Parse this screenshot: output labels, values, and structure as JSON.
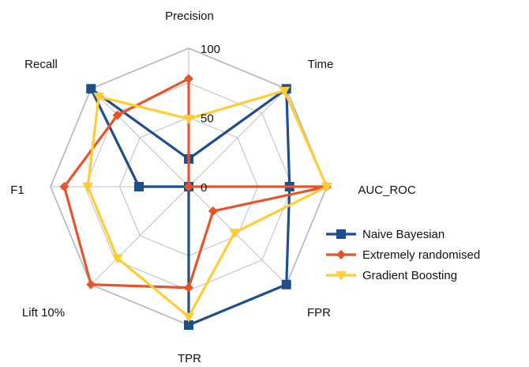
{
  "chart_data": {
    "type": "radar",
    "axes": [
      "Precision",
      "Time",
      "AUC_ROC",
      "FPR",
      "TPR",
      "Lift 10%",
      "F1",
      "Recall"
    ],
    "range": [
      0,
      100
    ],
    "ticks": [
      {
        "value": 0,
        "label": "0"
      },
      {
        "value": 50,
        "label": "50"
      },
      {
        "value": 100,
        "label": "100"
      }
    ],
    "grid": true,
    "legend_position": "right",
    "series": [
      {
        "name": "Naive Bayesian",
        "color": "#1f4e8c",
        "marker": "square",
        "values": [
          20,
          100,
          73,
          100,
          100,
          0,
          36,
          100
        ]
      },
      {
        "name": "Extremely randomised",
        "color": "#e8532b",
        "marker": "diamond",
        "values": [
          78,
          0,
          100,
          25,
          73,
          100,
          90,
          73
        ]
      },
      {
        "name": "Gradient Boosting",
        "color": "#ffcc33",
        "marker": "triangle",
        "values": [
          49,
          98,
          100,
          47,
          94,
          73,
          73,
          92
        ]
      }
    ]
  }
}
